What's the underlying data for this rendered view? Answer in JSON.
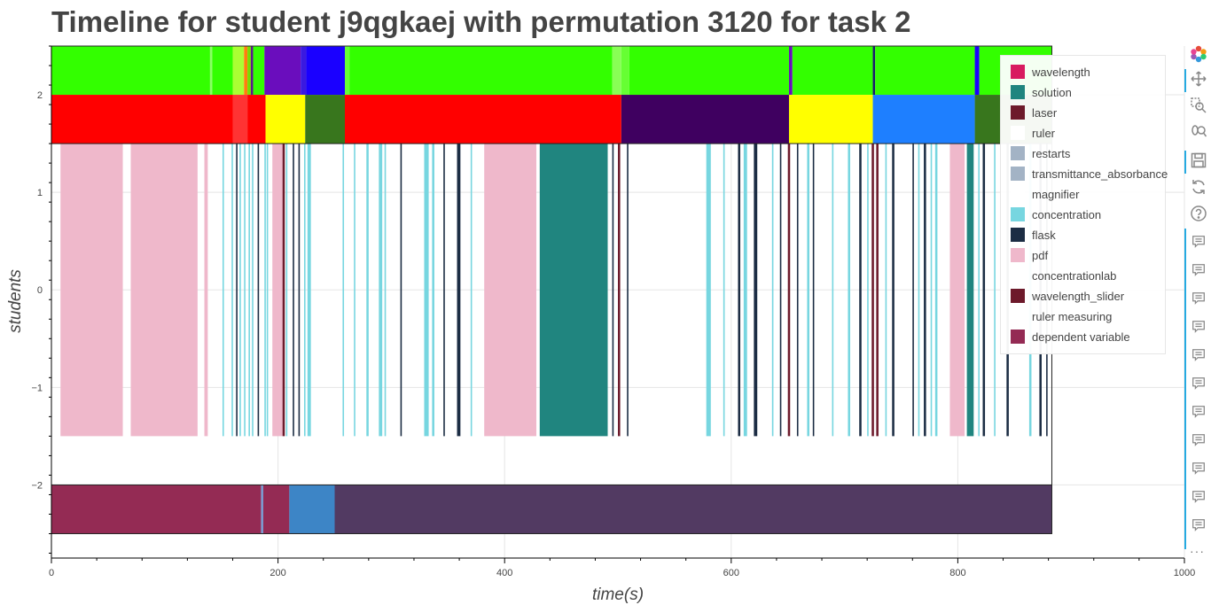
{
  "chart_data": {
    "type": "timeline",
    "title": "Timeline for student j9qgkaej with permutation 3120 for task 2",
    "xlabel": "time(s)",
    "ylabel": "students",
    "xlim": [
      0,
      1000
    ],
    "ylim": [
      -2.75,
      2.5
    ],
    "x_ticks": [
      0,
      200,
      400,
      600,
      800,
      1000
    ],
    "y_ticks": [
      2,
      1,
      0,
      -1,
      -2
    ],
    "x_tick_labels": [
      "0",
      "200",
      "400",
      "600",
      "800",
      "1000"
    ],
    "y_tick_labels": [
      "2",
      "1",
      "0",
      "−1",
      "−2"
    ],
    "grid": true,
    "legend_position": "top-right",
    "rows": {
      "top": [
        2,
        2.5
      ],
      "middle": [
        1.5,
        2
      ],
      "events": [
        -1.5,
        1.5
      ],
      "bottom": [
        -2.5,
        -2
      ]
    },
    "top_row": [
      [
        0,
        140,
        "#33ff00"
      ],
      [
        140,
        142,
        "#8cff66"
      ],
      [
        142,
        160,
        "#33ff00"
      ],
      [
        160,
        170,
        "#aaff33"
      ],
      [
        170,
        173,
        "#ff7f0e"
      ],
      [
        173,
        176,
        "#77dd00"
      ],
      [
        176,
        178,
        "#5a1a8e"
      ],
      [
        178,
        188,
        "#33ff00"
      ],
      [
        188,
        220,
        "#6a0dbd"
      ],
      [
        220,
        225,
        "#3a1ae0"
      ],
      [
        225,
        259,
        "#1a00ff"
      ],
      [
        259,
        263,
        "#66ff33"
      ],
      [
        263,
        495,
        "#33ff00"
      ],
      [
        495,
        503,
        "#88ff55"
      ],
      [
        503,
        510,
        "#66ff33"
      ],
      [
        510,
        651,
        "#33ff00"
      ],
      [
        651,
        654,
        "#6a0dbd"
      ],
      [
        654,
        725,
        "#33ff00"
      ],
      [
        725,
        727,
        "#1a1a6e"
      ],
      [
        727,
        815,
        "#33ff00"
      ],
      [
        815,
        819,
        "#1a00ff"
      ],
      [
        819,
        883,
        "#33ff00"
      ]
    ],
    "middle_row": [
      [
        0,
        160,
        "#ff0000"
      ],
      [
        160,
        173,
        "#ff3333"
      ],
      [
        173,
        189,
        "#ff0000"
      ],
      [
        189,
        224,
        "#ffff00"
      ],
      [
        224,
        259,
        "#38761d"
      ],
      [
        259,
        503,
        "#ff0000"
      ],
      [
        503,
        651,
        "#3f0060"
      ],
      [
        651,
        725,
        "#ffff00"
      ],
      [
        725,
        815,
        "#1e7fff"
      ],
      [
        815,
        883,
        "#38761d"
      ]
    ],
    "bottom_row": [
      [
        0,
        185,
        "#942b54"
      ],
      [
        185,
        187,
        "#7a9ad0"
      ],
      [
        187,
        210,
        "#942b54"
      ],
      [
        210,
        250,
        "#3d85c6"
      ],
      [
        250,
        883,
        "#523a62"
      ]
    ],
    "events": [
      [
        8,
        63,
        "pdf"
      ],
      [
        70,
        129,
        "pdf"
      ],
      [
        135,
        138,
        "pdf"
      ],
      [
        151,
        152,
        "concentration"
      ],
      [
        159,
        160,
        "concentration"
      ],
      [
        163,
        164,
        "flask"
      ],
      [
        166,
        167,
        "concentration"
      ],
      [
        170,
        171,
        "concentration"
      ],
      [
        174,
        175,
        "concentration"
      ],
      [
        177,
        178,
        "concentration"
      ],
      [
        182,
        183,
        "flask"
      ],
      [
        188,
        189,
        "concentration"
      ],
      [
        190,
        191,
        "concentration"
      ],
      [
        195,
        204,
        "pdf"
      ],
      [
        204,
        206,
        "wavelength_slider"
      ],
      [
        207,
        208,
        "concentration"
      ],
      [
        213,
        214,
        "flask"
      ],
      [
        218,
        219,
        "flask"
      ],
      [
        223,
        224,
        "concentration"
      ],
      [
        226,
        229,
        "concentration"
      ],
      [
        257,
        258,
        "concentration"
      ],
      [
        267,
        268,
        "concentration"
      ],
      [
        278,
        280,
        "concentration"
      ],
      [
        289,
        292,
        "concentration"
      ],
      [
        294,
        295,
        "concentration"
      ],
      [
        308,
        309,
        "flask"
      ],
      [
        329,
        333,
        "concentration"
      ],
      [
        336,
        338,
        "concentration"
      ],
      [
        346,
        347,
        "flask"
      ],
      [
        358,
        361,
        "flask"
      ],
      [
        370,
        371,
        "concentration"
      ],
      [
        382,
        428,
        "pdf"
      ],
      [
        431,
        491,
        "solution"
      ],
      [
        495,
        496,
        "flask"
      ],
      [
        500,
        502,
        "wavelength_slider"
      ],
      [
        508,
        509,
        "flask"
      ],
      [
        578,
        582,
        "concentration"
      ],
      [
        593,
        594,
        "concentration"
      ],
      [
        606,
        608,
        "flask"
      ],
      [
        611,
        614,
        "concentration"
      ],
      [
        620,
        623,
        "flask"
      ],
      [
        636,
        637,
        "concentration"
      ],
      [
        643,
        644,
        "flask"
      ],
      [
        650,
        652,
        "wavelength_slider"
      ],
      [
        658,
        659,
        "flask"
      ],
      [
        667,
        669,
        "concentration"
      ],
      [
        672,
        673,
        "flask"
      ],
      [
        689,
        690,
        "concentration"
      ],
      [
        703,
        705,
        "concentration"
      ],
      [
        713,
        715,
        "flask"
      ],
      [
        720,
        721,
        "concentration"
      ],
      [
        724,
        726,
        "wavelength_slider"
      ],
      [
        728,
        730,
        "wavelength_slider"
      ],
      [
        736,
        737,
        "concentration"
      ],
      [
        742,
        744,
        "flask"
      ],
      [
        760,
        761,
        "flask"
      ],
      [
        765,
        766,
        "concentration"
      ],
      [
        770,
        772,
        "flask"
      ],
      [
        776,
        777,
        "concentration"
      ],
      [
        780,
        782,
        "concentration"
      ],
      [
        793,
        806,
        "pdf"
      ],
      [
        808,
        814,
        "solution"
      ],
      [
        818,
        819,
        "concentration"
      ],
      [
        822,
        824,
        "flask"
      ],
      [
        832,
        833,
        "concentration"
      ],
      [
        843,
        845,
        "flask"
      ],
      [
        863,
        865,
        "concentration"
      ],
      [
        872,
        874,
        "flask"
      ],
      [
        878,
        879,
        "flask"
      ]
    ]
  },
  "legend": [
    {
      "label": "wavelength",
      "color": "#d81b60"
    },
    {
      "label": "solution",
      "color": "#20857f"
    },
    {
      "label": "laser",
      "color": "#6d1a2b"
    },
    {
      "label": "ruler",
      "color": "#ffffff"
    },
    {
      "label": "restarts",
      "color": "#a3b3c5"
    },
    {
      "label": "transmittance_absorbance",
      "color": "#a3b3c5"
    },
    {
      "label": "magnifier",
      "color": "#ffffff"
    },
    {
      "label": "concentration",
      "color": "#77d6e0"
    },
    {
      "label": "flask",
      "color": "#1c2d44"
    },
    {
      "label": "pdf",
      "color": "#efb8cb"
    },
    {
      "label": "concentrationlab",
      "color": "#ffffff"
    },
    {
      "label": "wavelength_slider",
      "color": "#6d1a2b"
    },
    {
      "label": "ruler measuring",
      "color": "#ffffff"
    },
    {
      "label": "dependent variable",
      "color": "#942b54"
    }
  ],
  "toolbar": {
    "logo_icon": "bokeh-logo-icon",
    "tools": [
      "pan-icon",
      "box-zoom-icon",
      "wheel-zoom-icon",
      "save-icon",
      "reset-icon",
      "help-icon"
    ],
    "hover_tool_count": 11,
    "more": "···"
  }
}
